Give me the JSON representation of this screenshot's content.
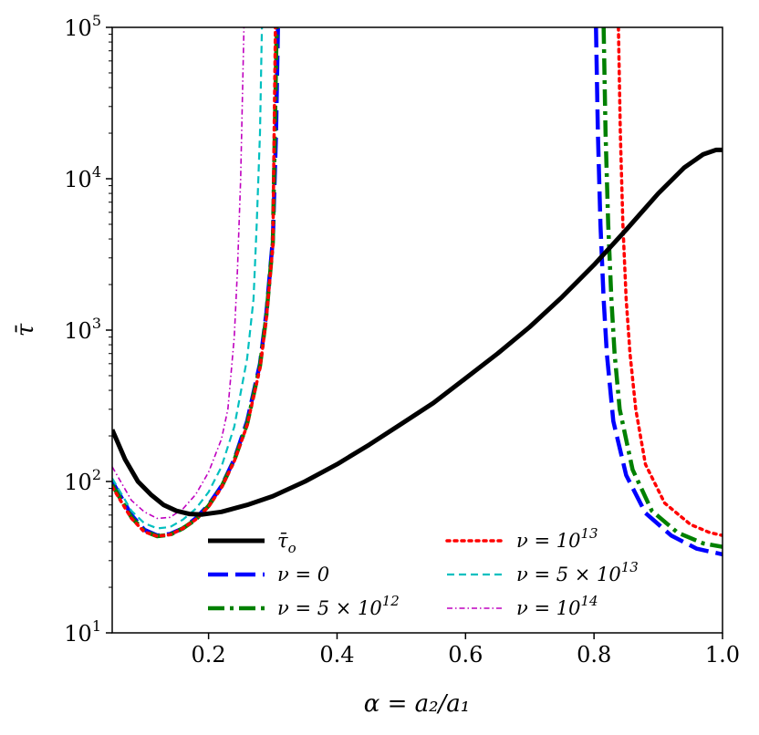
{
  "chart_data": {
    "type": "line",
    "title": "",
    "xlabel": "α = a₂/a₁",
    "ylabel": "τ̄",
    "xlim": [
      0.05,
      1.0
    ],
    "ylim": [
      10,
      100000
    ],
    "yscale": "log",
    "x_ticks": [
      0.2,
      0.4,
      0.6,
      0.8,
      1.0
    ],
    "x_tick_labels": [
      "0.2",
      "0.4",
      "0.6",
      "0.8",
      "1.0"
    ],
    "y_ticks": [
      10,
      100,
      1000,
      10000,
      100000
    ],
    "y_tick_labels": [
      {
        "base": "10",
        "exp": "1"
      },
      {
        "base": "10",
        "exp": "2"
      },
      {
        "base": "10",
        "exp": "3"
      },
      {
        "base": "10",
        "exp": "4"
      },
      {
        "base": "10",
        "exp": "5"
      }
    ],
    "legend_position": "bottom-center",
    "series": [
      {
        "name": "τ̄o",
        "color": "#000000",
        "dash": "solid",
        "segments": [
          [
            [
              0.05,
              220
            ],
            [
              0.07,
              140
            ],
            [
              0.09,
              100
            ],
            [
              0.11,
              82
            ],
            [
              0.13,
              70
            ],
            [
              0.15,
              64
            ],
            [
              0.17,
              61
            ],
            [
              0.19,
              60.5
            ],
            [
              0.22,
              63
            ],
            [
              0.26,
              70
            ],
            [
              0.3,
              80
            ],
            [
              0.35,
              100
            ],
            [
              0.4,
              130
            ],
            [
              0.45,
              175
            ],
            [
              0.5,
              240
            ],
            [
              0.55,
              330
            ],
            [
              0.6,
              480
            ],
            [
              0.65,
              700
            ],
            [
              0.7,
              1050
            ],
            [
              0.75,
              1650
            ],
            [
              0.8,
              2700
            ],
            [
              0.85,
              4600
            ],
            [
              0.9,
              8000
            ],
            [
              0.94,
              11800
            ],
            [
              0.97,
              14500
            ],
            [
              0.99,
              15500
            ],
            [
              1.0,
              15500
            ]
          ]
        ]
      },
      {
        "name": "ν = 0",
        "color": "#0000ff",
        "dash": "long-dash",
        "segments": [
          [
            [
              0.05,
              100
            ],
            [
              0.08,
              60
            ],
            [
              0.1,
              48
            ],
            [
              0.12,
              44
            ],
            [
              0.14,
              45
            ],
            [
              0.16,
              49
            ],
            [
              0.18,
              57
            ],
            [
              0.2,
              70
            ],
            [
              0.22,
              93
            ],
            [
              0.24,
              140
            ],
            [
              0.26,
              250
            ],
            [
              0.28,
              600
            ],
            [
              0.29,
              1300
            ],
            [
              0.3,
              4000
            ],
            [
              0.305,
              20000
            ],
            [
              0.308,
              100000
            ]
          ],
          [
            [
              0.803,
              100000
            ],
            [
              0.806,
              20000
            ],
            [
              0.81,
              5000
            ],
            [
              0.815,
              1600
            ],
            [
              0.82,
              700
            ],
            [
              0.83,
              250
            ],
            [
              0.85,
              110
            ],
            [
              0.88,
              62
            ],
            [
              0.92,
              44
            ],
            [
              0.96,
              36
            ],
            [
              1.0,
              33
            ]
          ]
        ]
      },
      {
        "name": "ν = 5 × 10¹²",
        "color": "#008000",
        "dash": "dash-dot",
        "segments": [
          [
            [
              0.05,
              95
            ],
            [
              0.08,
              58
            ],
            [
              0.1,
              47
            ],
            [
              0.12,
              43.5
            ],
            [
              0.14,
              44.5
            ],
            [
              0.16,
              49
            ],
            [
              0.18,
              56
            ],
            [
              0.2,
              69
            ],
            [
              0.22,
              92
            ],
            [
              0.24,
              138
            ],
            [
              0.26,
              240
            ],
            [
              0.28,
              580
            ],
            [
              0.29,
              1250
            ],
            [
              0.3,
              3800
            ],
            [
              0.303,
              20000
            ],
            [
              0.306,
              100000
            ]
          ],
          [
            [
              0.815,
              100000
            ],
            [
              0.818,
              20000
            ],
            [
              0.822,
              5000
            ],
            [
              0.827,
              1600
            ],
            [
              0.832,
              700
            ],
            [
              0.84,
              300
            ],
            [
              0.86,
              120
            ],
            [
              0.89,
              64
            ],
            [
              0.93,
              46
            ],
            [
              0.97,
              39
            ],
            [
              1.0,
              37
            ]
          ]
        ]
      },
      {
        "name": "ν = 10¹³",
        "color": "#ff0000",
        "dash": "dotted",
        "segments": [
          [
            [
              0.05,
              92
            ],
            [
              0.08,
              57
            ],
            [
              0.1,
              46.5
            ],
            [
              0.12,
              43.5
            ],
            [
              0.14,
              44.5
            ],
            [
              0.16,
              49
            ],
            [
              0.18,
              56
            ],
            [
              0.2,
              68
            ],
            [
              0.22,
              91
            ],
            [
              0.24,
              136
            ],
            [
              0.26,
              235
            ],
            [
              0.28,
              560
            ],
            [
              0.29,
              1200
            ],
            [
              0.3,
              3600
            ],
            [
              0.302,
              20000
            ],
            [
              0.304,
              100000
            ]
          ],
          [
            [
              0.838,
              100000
            ],
            [
              0.841,
              20000
            ],
            [
              0.845,
              5000
            ],
            [
              0.85,
              1600
            ],
            [
              0.856,
              700
            ],
            [
              0.865,
              300
            ],
            [
              0.88,
              130
            ],
            [
              0.91,
              72
            ],
            [
              0.95,
              52
            ],
            [
              0.98,
              46
            ],
            [
              1.0,
              44
            ]
          ]
        ]
      },
      {
        "name": "ν = 5 × 10¹³",
        "color": "#00bfbf",
        "dash": "dash-short",
        "segments": [
          [
            [
              0.05,
              105
            ],
            [
              0.08,
              64
            ],
            [
              0.1,
              53
            ],
            [
              0.12,
              49
            ],
            [
              0.14,
              50
            ],
            [
              0.16,
              56
            ],
            [
              0.18,
              66
            ],
            [
              0.2,
              85
            ],
            [
              0.22,
              125
            ],
            [
              0.24,
              230
            ],
            [
              0.26,
              650
            ],
            [
              0.27,
              1600
            ],
            [
              0.275,
              5000
            ],
            [
              0.28,
              20000
            ],
            [
              0.283,
              100000
            ]
          ]
        ]
      },
      {
        "name": "ν = 10¹⁴",
        "color": "#bf00bf",
        "dash": "dash-dot-fine",
        "segments": [
          [
            [
              0.05,
              125
            ],
            [
              0.08,
              75
            ],
            [
              0.1,
              63
            ],
            [
              0.12,
              57
            ],
            [
              0.14,
              58
            ],
            [
              0.16,
              66
            ],
            [
              0.18,
              82
            ],
            [
              0.2,
              115
            ],
            [
              0.22,
              190
            ],
            [
              0.23,
              300
            ],
            [
              0.24,
              900
            ],
            [
              0.245,
              2500
            ],
            [
              0.25,
              10000
            ],
            [
              0.255,
              100000
            ]
          ]
        ]
      }
    ],
    "legend_entries": [
      {
        "base": "τ̄",
        "sub": "o",
        "color": "#000000",
        "dash": "solid"
      },
      {
        "text": "ν = 10",
        "sup": "13",
        "color": "#ff0000",
        "dash": "dotted"
      },
      {
        "text": "ν = 0",
        "color": "#0000ff",
        "dash": "long-dash"
      },
      {
        "text": "ν = 5 × 10",
        "sup": "13",
        "color": "#00bfbf",
        "dash": "dash-short"
      },
      {
        "text": "ν = 5 × 10",
        "sup": "12",
        "color": "#008000",
        "dash": "dash-dot"
      },
      {
        "text": "ν = 10",
        "sup": "14",
        "color": "#bf00bf",
        "dash": "dash-dot-fine"
      }
    ]
  }
}
